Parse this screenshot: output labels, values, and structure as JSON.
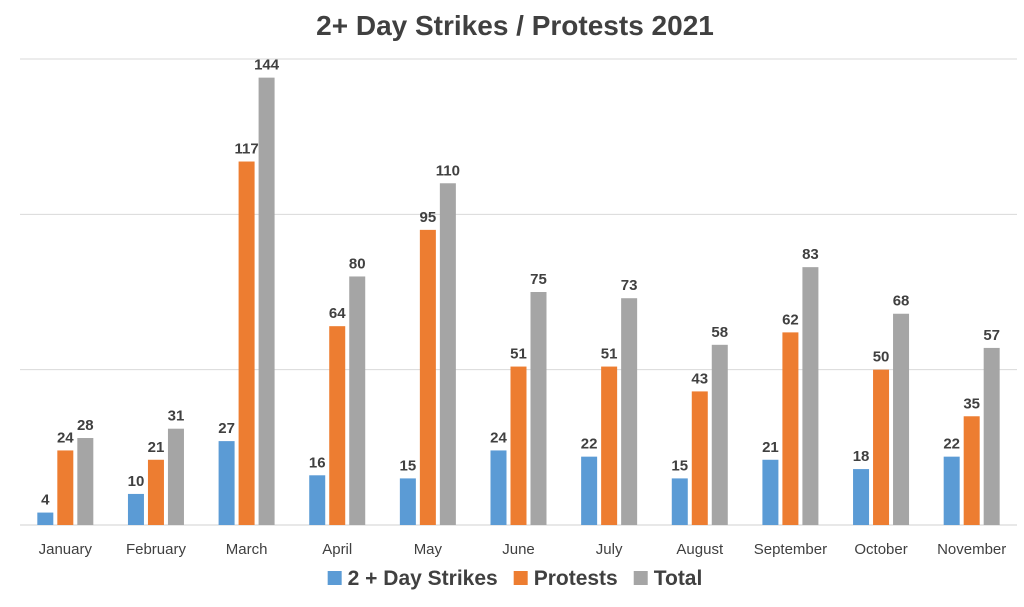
{
  "chart_data": {
    "type": "bar",
    "title": "2+ Day Strikes / Protests 2021",
    "categories": [
      "January",
      "February",
      "March",
      "April",
      "May",
      "June",
      "July",
      "August",
      "September",
      "October",
      "November"
    ],
    "series": [
      {
        "name": "2 + Day Strikes",
        "color": "#5B9BD5",
        "values": [
          4,
          10,
          27,
          16,
          15,
          24,
          22,
          15,
          21,
          18,
          22
        ]
      },
      {
        "name": "Protests",
        "color": "#ED7D31",
        "values": [
          24,
          21,
          117,
          64,
          95,
          51,
          51,
          43,
          62,
          50,
          35
        ]
      },
      {
        "name": "Total",
        "color": "#A5A5A5",
        "values": [
          28,
          31,
          144,
          80,
          110,
          75,
          73,
          58,
          83,
          68,
          57
        ]
      }
    ],
    "ylim": [
      0,
      150
    ],
    "y_gridlines": [
      0,
      50,
      100,
      150
    ],
    "y_tick_labels_visible": false,
    "data_labels": true,
    "grid": true,
    "legend_position": "bottom"
  }
}
